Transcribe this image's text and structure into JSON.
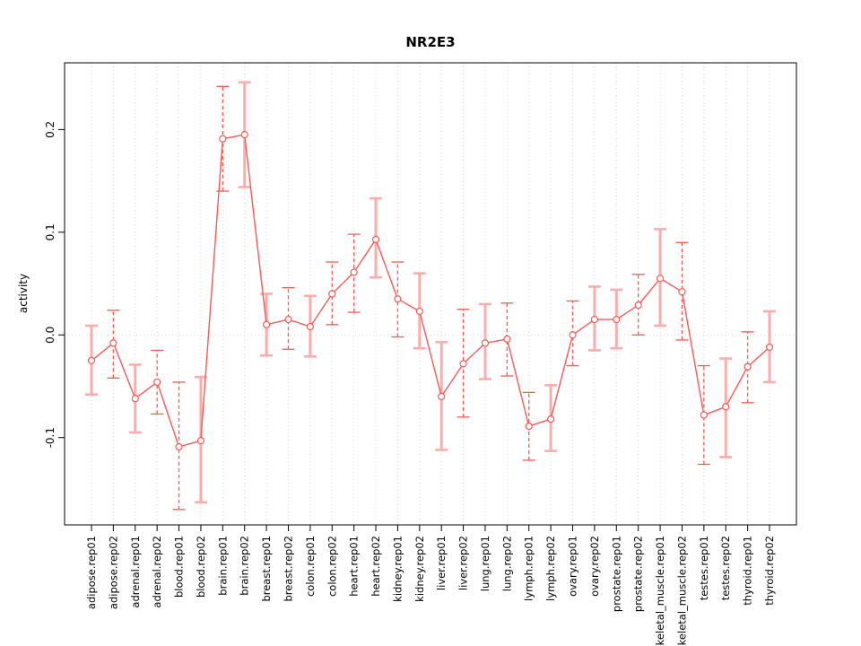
{
  "chart_data": {
    "type": "line",
    "title": "NR2E3",
    "xlabel": "",
    "ylabel": "activity",
    "ylim": [
      -0.185,
      0.265
    ],
    "yticks": [
      {
        "value": -0.1,
        "label": "-0.1"
      },
      {
        "value": 0.0,
        "label": "0.0"
      },
      {
        "value": 0.1,
        "label": "0.1"
      },
      {
        "value": 0.2,
        "label": "0.2"
      }
    ],
    "grid": {
      "vertical_per_category": true,
      "horizontal_zero_line": true,
      "style": "dotted"
    },
    "legend": "none",
    "marker": "open-circle",
    "colors": {
      "series_line": "#f75a55",
      "errorbar_dashed": "#f75a55",
      "errorbar_solid": "#fbadab",
      "grid": "#d6d6d6",
      "axis": "#000000",
      "background": "#ffffff"
    },
    "points": [
      {
        "label": "adipose.rep01",
        "value": -0.025,
        "lower": -0.058,
        "upper": 0.009,
        "bar": "solid"
      },
      {
        "label": "adipose.rep02",
        "value": -0.008,
        "lower": -0.042,
        "upper": 0.024,
        "bar": "dashed"
      },
      {
        "label": "adrenal.rep01",
        "value": -0.062,
        "lower": -0.095,
        "upper": -0.029,
        "bar": "solid"
      },
      {
        "label": "adrenal.rep02",
        "value": -0.046,
        "lower": -0.077,
        "upper": -0.015,
        "bar": "dashed"
      },
      {
        "label": "blood.rep01",
        "value": -0.109,
        "lower": -0.17,
        "upper": -0.046,
        "bar": "dashed"
      },
      {
        "label": "blood.rep02",
        "value": -0.103,
        "lower": -0.163,
        "upper": -0.041,
        "bar": "solid"
      },
      {
        "label": "brain.rep01",
        "value": 0.191,
        "lower": 0.14,
        "upper": 0.242,
        "bar": "dashed"
      },
      {
        "label": "brain.rep02",
        "value": 0.195,
        "lower": 0.144,
        "upper": 0.246,
        "bar": "solid"
      },
      {
        "label": "breast.rep01",
        "value": 0.01,
        "lower": -0.02,
        "upper": 0.04,
        "bar": "solid"
      },
      {
        "label": "breast.rep02",
        "value": 0.015,
        "lower": -0.014,
        "upper": 0.046,
        "bar": "dashed"
      },
      {
        "label": "colon.rep01",
        "value": 0.008,
        "lower": -0.021,
        "upper": 0.038,
        "bar": "solid"
      },
      {
        "label": "colon.rep02",
        "value": 0.04,
        "lower": 0.01,
        "upper": 0.071,
        "bar": "dashed"
      },
      {
        "label": "heart.rep01",
        "value": 0.061,
        "lower": 0.022,
        "upper": 0.098,
        "bar": "dashed"
      },
      {
        "label": "heart.rep02",
        "value": 0.093,
        "lower": 0.056,
        "upper": 0.133,
        "bar": "solid"
      },
      {
        "label": "kidney.rep01",
        "value": 0.035,
        "lower": -0.002,
        "upper": 0.071,
        "bar": "dashed"
      },
      {
        "label": "kidney.rep02",
        "value": 0.023,
        "lower": -0.013,
        "upper": 0.06,
        "bar": "solid"
      },
      {
        "label": "liver.rep01",
        "value": -0.06,
        "lower": -0.112,
        "upper": -0.007,
        "bar": "solid"
      },
      {
        "label": "liver.rep02",
        "value": -0.028,
        "lower": -0.08,
        "upper": 0.025,
        "bar": "dashed"
      },
      {
        "label": "lung.rep01",
        "value": -0.008,
        "lower": -0.043,
        "upper": 0.03,
        "bar": "solid"
      },
      {
        "label": "lung.rep02",
        "value": -0.004,
        "lower": -0.04,
        "upper": 0.031,
        "bar": "dashed"
      },
      {
        "label": "lymph.rep01",
        "value": -0.089,
        "lower": -0.122,
        "upper": -0.056,
        "bar": "dashed"
      },
      {
        "label": "lymph.rep02",
        "value": -0.082,
        "lower": -0.113,
        "upper": -0.049,
        "bar": "solid"
      },
      {
        "label": "ovary.rep01",
        "value": 0.0,
        "lower": -0.03,
        "upper": 0.033,
        "bar": "dashed"
      },
      {
        "label": "ovary.rep02",
        "value": 0.015,
        "lower": -0.015,
        "upper": 0.047,
        "bar": "solid"
      },
      {
        "label": "prostate.rep01",
        "value": 0.015,
        "lower": -0.013,
        "upper": 0.044,
        "bar": "solid"
      },
      {
        "label": "prostate.rep02",
        "value": 0.029,
        "lower": 0.0,
        "upper": 0.059,
        "bar": "dashed"
      },
      {
        "label": "skeletal_muscle.rep01",
        "value": 0.055,
        "lower": 0.009,
        "upper": 0.103,
        "bar": "solid"
      },
      {
        "label": "skeletal_muscle.rep02",
        "value": 0.042,
        "lower": -0.005,
        "upper": 0.09,
        "bar": "dashed"
      },
      {
        "label": "testes.rep01",
        "value": -0.078,
        "lower": -0.126,
        "upper": -0.03,
        "bar": "dashed"
      },
      {
        "label": "testes.rep02",
        "value": -0.07,
        "lower": -0.119,
        "upper": -0.023,
        "bar": "solid"
      },
      {
        "label": "thyroid.rep01",
        "value": -0.031,
        "lower": -0.066,
        "upper": 0.003,
        "bar": "dashed"
      },
      {
        "label": "thyroid.rep02",
        "value": -0.012,
        "lower": -0.046,
        "upper": 0.023,
        "bar": "solid"
      }
    ]
  }
}
